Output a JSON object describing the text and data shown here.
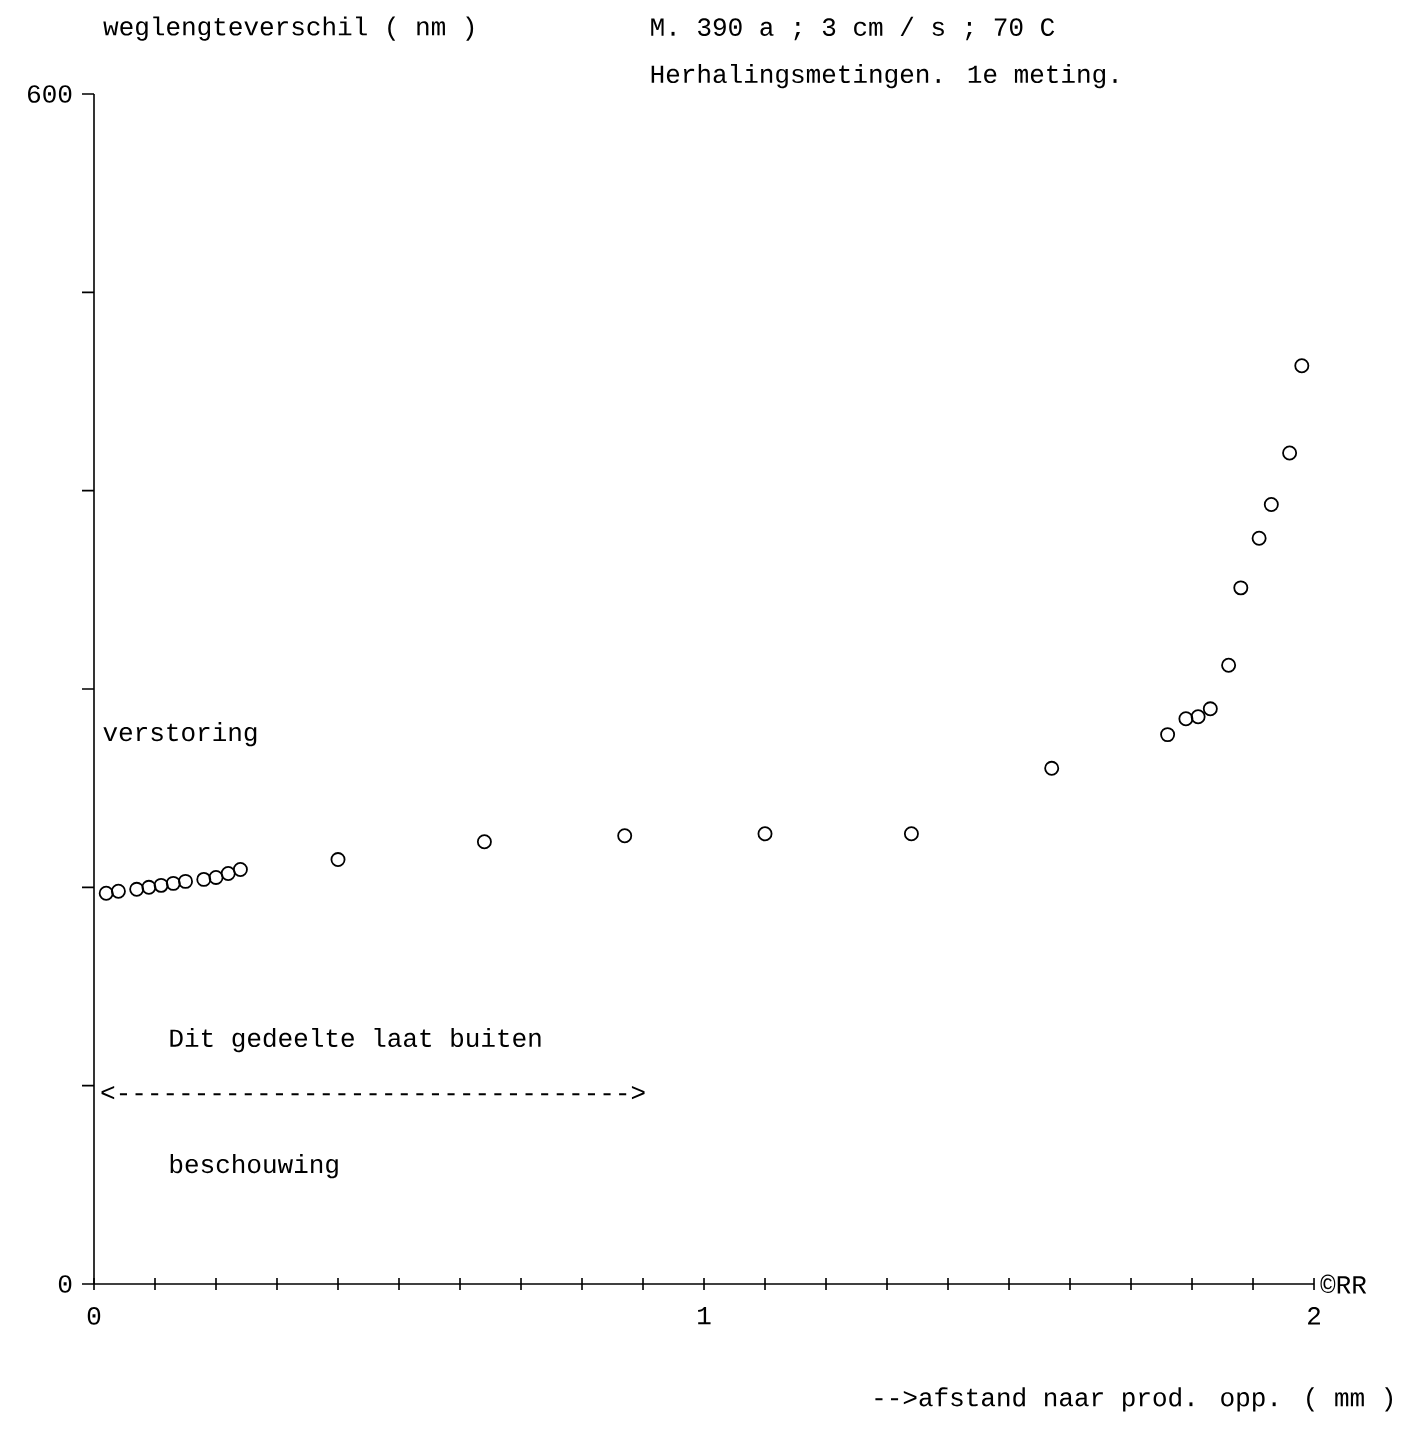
{
  "chart_data": {
    "type": "scatter",
    "title": "M. 390 a ; 3 cm / s ; 70 C",
    "subtitle": "Herhalingsmetingen. 1e meting.",
    "ylabel": "weglengteverschil ( nm )",
    "xlabel": "-->afstand naar prod. opp. ( mm )",
    "annotations": [
      "verstoring",
      "Dit gedeelte laat buiten",
      "beschouwing",
      "©RR",
      "<--------------------------------->"
    ],
    "x": [
      0.02,
      0.04,
      0.07,
      0.09,
      0.11,
      0.13,
      0.15,
      0.18,
      0.2,
      0.22,
      0.24,
      0.4,
      0.64,
      0.87,
      1.1,
      1.34,
      1.57,
      1.76,
      1.79,
      1.81,
      1.83,
      1.86,
      1.88,
      1.91,
      1.93,
      1.96,
      1.98
    ],
    "values": [
      197,
      198,
      199,
      200,
      201,
      202,
      203,
      204,
      205,
      207,
      209,
      214,
      223,
      226,
      227,
      227,
      260,
      277,
      285,
      286,
      290,
      312,
      351,
      376,
      393,
      419,
      463
    ],
    "color": "#000000",
    "marker": "circle",
    "grid": false,
    "legend": false,
    "xlim": [
      0,
      2
    ],
    "ylim": [
      0,
      600
    ],
    "xticks": [
      0,
      {
        "value": 0.1,
        "label": null
      },
      {
        "value": 0.2,
        "label": null
      },
      {
        "value": 0.3,
        "label": null
      },
      {
        "value": 0.4,
        "label": null
      },
      {
        "value": 0.5,
        "label": null
      },
      {
        "value": 0.6,
        "label": null
      },
      {
        "value": 0.7,
        "label": null
      },
      {
        "value": 0.8,
        "label": null
      },
      {
        "value": 0.9,
        "label": null
      },
      1,
      {
        "value": 1.1,
        "label": null
      },
      {
        "value": 1.2,
        "label": null
      },
      {
        "value": 1.3,
        "label": null
      },
      {
        "value": 1.4,
        "label": null
      },
      {
        "value": 1.5,
        "label": null
      },
      {
        "value": 1.6,
        "label": null
      },
      {
        "value": 1.7,
        "label": null
      },
      {
        "value": 1.8,
        "label": null
      },
      {
        "value": 1.9,
        "label": null
      },
      2
    ],
    "yticks": [
      0,
      {
        "value": 100,
        "label": null
      },
      {
        "value": 200,
        "label": null
      },
      {
        "value": 300,
        "label": null
      },
      {
        "value": 400,
        "label": null
      },
      {
        "value": 500,
        "label": null
      },
      600
    ]
  }
}
